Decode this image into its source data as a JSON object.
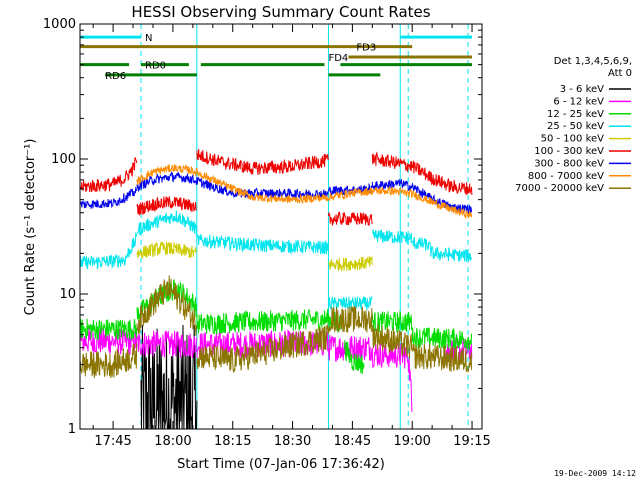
{
  "chart_data": {
    "type": "line",
    "title": "HESSI Observing Summary Count Rates",
    "xlabel": "Start Time (07-Jan-06 17:36:42)",
    "ylabel": "Count Rate (s⁻¹ detector⁻¹)",
    "y_scale": "log",
    "ylim": [
      1,
      1000
    ],
    "xlim": [
      "17:36:42",
      "19:17:30"
    ],
    "y_ticks": [
      "1",
      "10",
      "100",
      "1000"
    ],
    "x_ticks": [
      "17:45",
      "18:00",
      "18:15",
      "18:30",
      "18:45",
      "19:00",
      "19:15"
    ],
    "grid": false,
    "legend": {
      "placement": "right",
      "header": [
        "Det 1,3,4,5,6,9,",
        "Att 0"
      ],
      "entries": [
        {
          "label": "3 - 6 keV",
          "color": "#000000"
        },
        {
          "label": "6 - 12 keV",
          "color": "#ff00ff"
        },
        {
          "label": "12 - 25 keV",
          "color": "#00dd00"
        },
        {
          "label": "25 - 50 keV",
          "color": "#00e5ee"
        },
        {
          "label": "50 - 100 keV",
          "color": "#cccc00"
        },
        {
          "label": "100 - 300 keV",
          "color": "#ee0000"
        },
        {
          "label": "300 - 800 keV",
          "color": "#0000ee"
        },
        {
          "label": "800 - 7000 keV",
          "color": "#ff8c00"
        },
        {
          "label": "7000 - 20000 keV",
          "color": "#8b7500"
        }
      ]
    },
    "series": [
      {
        "name": "3 - 6 keV",
        "color": "#000000",
        "noise": 0.6,
        "segments": [
          [
            [
              "17:52",
              1.5
            ],
            [
              "18:06",
              1.5
            ]
          ]
        ]
      },
      {
        "name": "6 - 12 keV",
        "color": "#ff00ff",
        "noise": 0.1,
        "segments": [
          [
            [
              "17:36:42",
              4.5
            ],
            [
              "17:51",
              4.4
            ]
          ],
          [
            [
              "17:51",
              4.3
            ],
            [
              "18:06",
              4.2
            ]
          ],
          [
            [
              "18:06",
              4.2
            ],
            [
              "18:39",
              4.3
            ]
          ],
          [
            [
              "18:39",
              4.0
            ],
            [
              "18:50",
              4.0
            ]
          ],
          [
            [
              "18:50",
              3.6
            ],
            [
              "18:57",
              3.5
            ]
          ],
          [
            [
              "18:57",
              3.5
            ],
            [
              "18:59",
              3.5
            ],
            [
              "19:00",
              1.2
            ]
          ],
          [
            [
              "19:08",
              3.8
            ],
            [
              "19:15",
              3.8
            ]
          ]
        ]
      },
      {
        "name": "12 - 25 keV",
        "color": "#00dd00",
        "noise": 0.08,
        "segments": [
          [
            [
              "17:36:42",
              5.5
            ],
            [
              "17:51",
              5.5
            ]
          ],
          [
            [
              "17:51",
              7.0
            ],
            [
              "17:58",
              10.0
            ],
            [
              "18:01",
              11.0
            ],
            [
              "18:06",
              8.0
            ]
          ],
          [
            [
              "18:06",
              6.0
            ],
            [
              "18:39",
              6.5
            ]
          ],
          [
            [
              "18:39",
              6.5
            ],
            [
              "18:42",
              6.0
            ]
          ],
          [
            [
              "18:43",
              4.0
            ],
            [
              "18:45",
              3.2
            ],
            [
              "18:48",
              3.0
            ]
          ],
          [
            [
              "18:50",
              6.2
            ],
            [
              "19:00",
              6.2
            ]
          ],
          [
            [
              "19:00",
              4.8
            ],
            [
              "19:15",
              4.6
            ]
          ]
        ]
      },
      {
        "name": "25 - 50 keV",
        "color": "#00e5ee",
        "noise": 0.05,
        "segments": [
          [
            [
              "17:36:42",
              17
            ],
            [
              "17:45",
              17.5
            ],
            [
              "17:48",
              18
            ],
            [
              "17:50",
              23
            ],
            [
              "17:51",
              26
            ]
          ],
          [
            [
              "17:51",
              30
            ],
            [
              "17:58",
              36
            ],
            [
              "18:01",
              38
            ],
            [
              "18:06",
              30
            ]
          ],
          [
            [
              "18:06",
              25
            ],
            [
              "18:20",
              23
            ],
            [
              "18:39",
              22
            ]
          ],
          [
            [
              "18:39",
              8.5
            ],
            [
              "18:50",
              8.5
            ]
          ],
          [
            [
              "18:50",
              27
            ],
            [
              "19:00",
              26
            ]
          ],
          [
            [
              "19:00",
              24
            ],
            [
              "19:04",
              23
            ],
            [
              "19:05",
              20
            ],
            [
              "19:15",
              19
            ]
          ]
        ]
      },
      {
        "name": "50 - 100 keV",
        "color": "#cccc00",
        "noise": 0.05,
        "segments": [
          [
            [
              "17:51",
              20
            ],
            [
              "17:58",
              22
            ],
            [
              "18:06",
              20
            ]
          ],
          [
            [
              "18:39",
              16.5
            ],
            [
              "18:50",
              17
            ]
          ]
        ]
      },
      {
        "name": "100 - 300 keV",
        "color": "#ee0000",
        "noise": 0.05,
        "segments": [
          [
            [
              "17:36:42",
              62
            ],
            [
              "17:45",
              65
            ],
            [
              "17:48",
              72
            ],
            [
              "17:50",
              85
            ],
            [
              "17:51",
              100
            ]
          ],
          [
            [
              "17:51",
              42
            ],
            [
              "17:55",
              46
            ],
            [
              "18:00",
              48
            ],
            [
              "18:06",
              44
            ]
          ],
          [
            [
              "18:06",
              108
            ],
            [
              "18:12",
              95
            ],
            [
              "18:20",
              85
            ],
            [
              "18:30",
              88
            ],
            [
              "18:39",
              98
            ]
          ],
          [
            [
              "18:39",
              36
            ],
            [
              "18:50",
              36
            ]
          ],
          [
            [
              "18:50",
              100
            ],
            [
              "18:55",
              95
            ],
            [
              "19:00",
              88
            ],
            [
              "19:05",
              72
            ],
            [
              "19:10",
              62
            ],
            [
              "19:15",
              60
            ]
          ]
        ]
      },
      {
        "name": "300 - 800 keV",
        "color": "#0000ee",
        "noise": 0.035,
        "segments": [
          [
            [
              "17:36:42",
              46
            ],
            [
              "17:45",
              47
            ],
            [
              "17:48",
              52
            ],
            [
              "17:51",
              58
            ]
          ],
          [
            [
              "17:51",
              62
            ],
            [
              "17:55",
              70
            ],
            [
              "18:00",
              74
            ],
            [
              "18:04",
              72
            ],
            [
              "18:10",
              62
            ],
            [
              "18:15",
              56
            ],
            [
              "18:39",
              55
            ]
          ],
          [
            [
              "18:39",
              58
            ],
            [
              "18:50",
              60
            ]
          ],
          [
            [
              "18:50",
              63
            ],
            [
              "18:57",
              66
            ],
            [
              "19:00",
              62
            ],
            [
              "19:05",
              50
            ],
            [
              "19:10",
              44
            ],
            [
              "19:15",
              42
            ]
          ]
        ]
      },
      {
        "name": "800 - 7000 keV",
        "color": "#ff8c00",
        "noise": 0.03,
        "segments": [
          [
            [
              "17:51",
              68
            ],
            [
              "17:55",
              80
            ],
            [
              "18:00",
              86
            ],
            [
              "18:05",
              82
            ],
            [
              "18:10",
              70
            ],
            [
              "18:15",
              60
            ],
            [
              "18:20",
              52
            ],
            [
              "18:30",
              50
            ],
            [
              "18:39",
              52
            ],
            [
              "18:45",
              56
            ],
            [
              "18:50",
              58
            ],
            [
              "18:55",
              58
            ],
            [
              "19:00",
              55
            ],
            [
              "19:05",
              48
            ],
            [
              "19:10",
              42
            ],
            [
              "19:15",
              38
            ]
          ]
        ]
      },
      {
        "name": "7000 - 20000 keV",
        "color": "#8b7500",
        "noise": 0.1,
        "segments": [
          [
            [
              "17:36:42",
              3.0
            ],
            [
              "17:45",
              3.0
            ],
            [
              "17:51",
              3.5
            ]
          ],
          [
            [
              "17:51",
              6.0
            ],
            [
              "17:55",
              8.5
            ],
            [
              "17:59",
              11.0
            ],
            [
              "18:03",
              8.0
            ],
            [
              "18:06",
              6.0
            ]
          ],
          [
            [
              "18:06",
              3.5
            ],
            [
              "18:15",
              3.2
            ],
            [
              "18:25",
              3.8
            ],
            [
              "18:39",
              4.8
            ]
          ],
          [
            [
              "18:39",
              6.5
            ],
            [
              "18:50",
              6.5
            ]
          ],
          [
            [
              "18:50",
              5.0
            ],
            [
              "19:00",
              4.0
            ]
          ],
          [
            [
              "19:00",
              3.5
            ],
            [
              "19:15",
              3.2
            ]
          ]
        ]
      }
    ],
    "vertical_markers": [
      {
        "time": "17:36:42",
        "style": "solid"
      },
      {
        "time": "17:52",
        "style": "dashed"
      },
      {
        "time": "18:06",
        "style": "solid"
      },
      {
        "time": "18:39",
        "style": "solid"
      },
      {
        "time": "18:57",
        "style": "solid"
      },
      {
        "time": "18:59",
        "style": "dashed"
      },
      {
        "time": "19:14",
        "style": "dashed"
      }
    ],
    "status_bars": [
      {
        "label": "N",
        "color": "#00e5ee",
        "value": 800,
        "segments": [
          [
            "17:36:42",
            "17:52"
          ],
          [
            "18:57",
            "19:15"
          ]
        ],
        "label_at": "17:53"
      },
      {
        "label": "FD3",
        "color": "#8b7500",
        "value": 680,
        "segments": [
          [
            "17:36:42",
            "19:00"
          ]
        ],
        "label_at": "18:46"
      },
      {
        "label": "FD4",
        "color": "#8b7500",
        "value": 570,
        "segments": [
          [
            "18:44",
            "19:15"
          ]
        ],
        "label_at": "18:39"
      },
      {
        "label": "RD0",
        "color": "#008000",
        "value": 500,
        "segments": [
          [
            "17:36:42",
            "17:49"
          ],
          [
            "17:52",
            "18:04"
          ],
          [
            "18:07",
            "18:38"
          ],
          [
            "18:42",
            "19:15"
          ]
        ],
        "label_at": "17:53"
      },
      {
        "label": "RD6",
        "color": "#008000",
        "value": 420,
        "segments": [
          [
            "17:43",
            "18:06"
          ],
          [
            "18:39",
            "18:52"
          ]
        ],
        "label_at": "17:43"
      }
    ]
  },
  "footer_date": "19-Dec-2009 14:12"
}
